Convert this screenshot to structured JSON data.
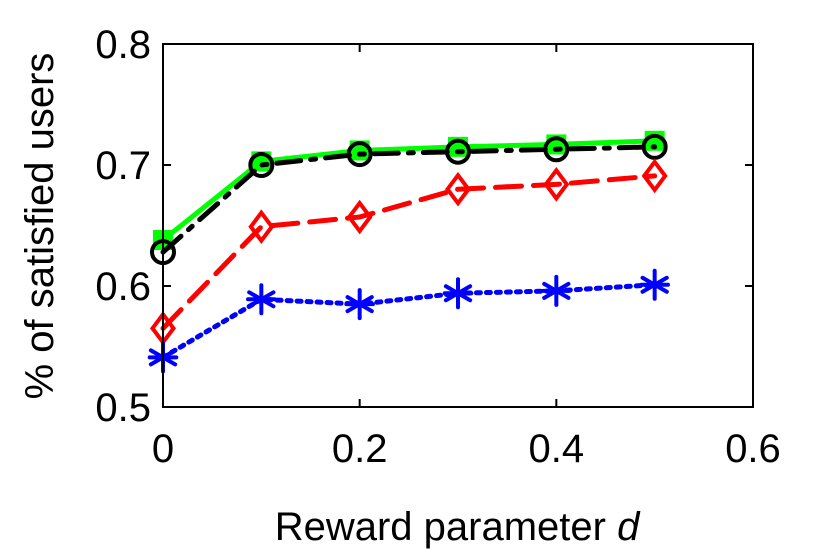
{
  "chart_data": {
    "type": "line",
    "xlabel_prefix": "Reward parameter ",
    "xlabel_var": "d",
    "ylabel": "% of satisfied users",
    "xlim": [
      0,
      0.6
    ],
    "ylim": [
      0.5,
      0.8
    ],
    "xticks": [
      "0",
      "0.2",
      "0.4",
      "0.6"
    ],
    "yticks": [
      "0.5",
      "0.6",
      "0.7",
      "0.8"
    ],
    "grid": false,
    "x": [
      0,
      0.1,
      0.2,
      0.3,
      0.4,
      0.5
    ],
    "series": [
      {
        "values": [
          0.638,
          0.703,
          0.712,
          0.715,
          0.717,
          0.72
        ],
        "color": "#00ff00",
        "marker": "square",
        "line": "solid"
      },
      {
        "values": [
          0.628,
          0.7,
          0.709,
          0.711,
          0.713,
          0.715
        ],
        "color": "#000000",
        "marker": "circle",
        "line": "dashdot"
      },
      {
        "values": [
          0.565,
          0.649,
          0.657,
          0.68,
          0.684,
          0.691
        ],
        "color": "#ff0000",
        "marker": "diamond",
        "line": "dashed"
      },
      {
        "values": [
          0.541,
          0.589,
          0.585,
          0.594,
          0.596,
          0.601
        ],
        "color": "#0000ff",
        "marker": "asterisk",
        "line": "dotted"
      }
    ]
  }
}
